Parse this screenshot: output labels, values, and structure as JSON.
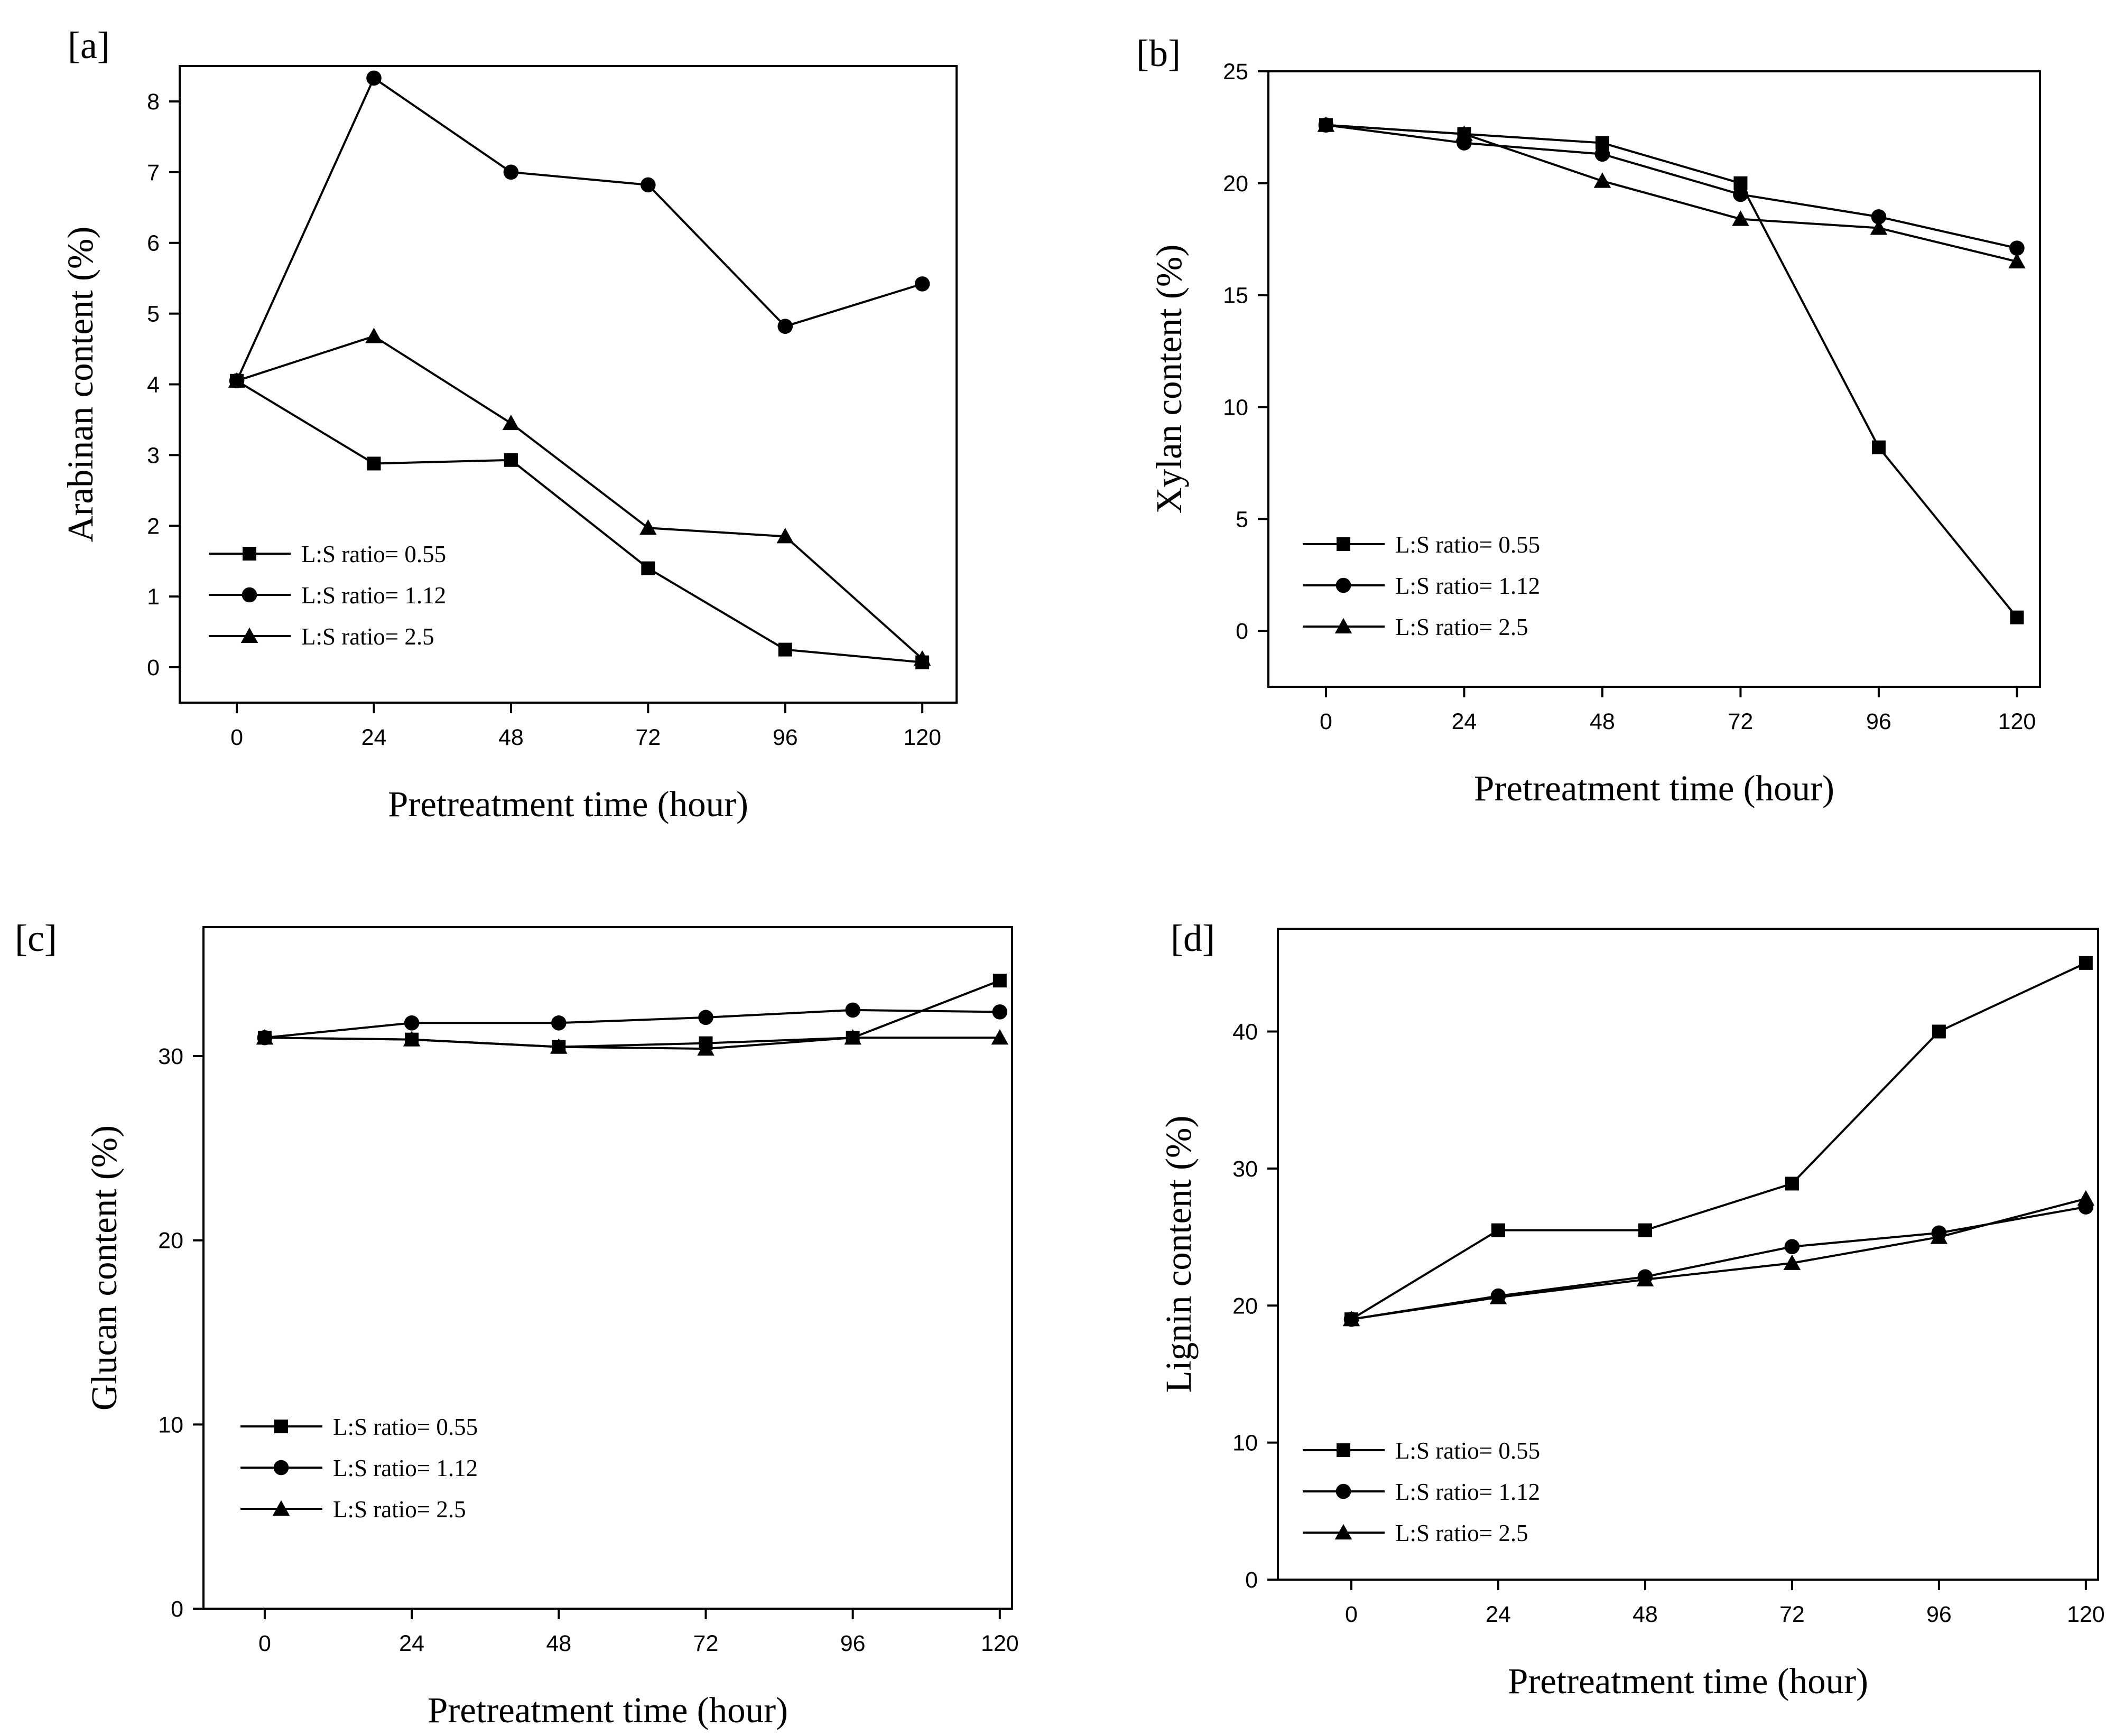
{
  "chart_data": [
    {
      "type": "line",
      "panel_label": "[a]",
      "x": [
        0,
        24,
        48,
        72,
        96,
        120
      ],
      "xticks": [
        "0",
        "24",
        "48",
        "72",
        "96",
        "120"
      ],
      "xlabel": "Pretreatment time (hour)",
      "ylabel": "Arabinan content (%)",
      "yticks": [
        "0",
        "1",
        "2",
        "3",
        "4",
        "5",
        "6",
        "7",
        "8"
      ],
      "xlim": [
        -10,
        126
      ],
      "ylim": [
        -0.5,
        8.5
      ],
      "legend_position": "bottom-left",
      "series": [
        {
          "name": "L:S ratio= 0.55",
          "marker": "square",
          "values": [
            4.05,
            2.88,
            2.93,
            1.4,
            0.25,
            0.07
          ]
        },
        {
          "name": "L:S ratio= 1.12",
          "marker": "circle",
          "values": [
            4.05,
            8.33,
            7.0,
            6.82,
            4.82,
            5.42
          ]
        },
        {
          "name": "L:S ratio= 2.5",
          "marker": "triangle",
          "values": [
            4.05,
            4.68,
            3.45,
            1.97,
            1.85,
            0.12
          ]
        }
      ]
    },
    {
      "type": "line",
      "panel_label": "[b]",
      "x": [
        0,
        24,
        48,
        72,
        96,
        120
      ],
      "xticks": [
        "0",
        "24",
        "48",
        "72",
        "96",
        "120"
      ],
      "xlabel": "Pretreatment time (hour)",
      "ylabel": "Xylan content (%)",
      "yticks": [
        "0",
        "5",
        "10",
        "15",
        "20",
        "25"
      ],
      "xlim": [
        -10,
        124
      ],
      "ylim": [
        -2.5,
        25
      ],
      "legend_position": "bottom-left",
      "series": [
        {
          "name": "L:S ratio= 0.55",
          "marker": "square",
          "values": [
            22.6,
            22.2,
            21.8,
            20.0,
            8.2,
            0.6
          ]
        },
        {
          "name": "L:S ratio= 1.12",
          "marker": "circle",
          "values": [
            22.6,
            21.8,
            21.3,
            19.5,
            18.5,
            17.1
          ]
        },
        {
          "name": "L:S ratio= 2.5",
          "marker": "triangle",
          "values": [
            22.6,
            22.2,
            20.1,
            18.4,
            18.0,
            16.5
          ]
        }
      ]
    },
    {
      "type": "line",
      "panel_label": "[c]",
      "x": [
        0,
        24,
        48,
        72,
        96,
        120
      ],
      "xticks": [
        "0",
        "24",
        "48",
        "72",
        "96",
        "120"
      ],
      "xlabel": "Pretreatment time (hour)",
      "ylabel": "Glucan content (%)",
      "yticks": [
        "0",
        "10",
        "20",
        "30"
      ],
      "xlim": [
        -10,
        122
      ],
      "ylim": [
        0,
        37
      ],
      "legend_position": "bottom-left",
      "series": [
        {
          "name": "L:S ratio= 0.55",
          "marker": "square",
          "values": [
            31.0,
            30.9,
            30.5,
            30.7,
            31.0,
            34.1
          ]
        },
        {
          "name": "L:S ratio= 1.12",
          "marker": "circle",
          "values": [
            31.0,
            31.8,
            31.8,
            32.1,
            32.5,
            32.4
          ]
        },
        {
          "name": "L:S ratio= 2.5",
          "marker": "triangle",
          "values": [
            31.0,
            30.9,
            30.5,
            30.4,
            31.0,
            31.0
          ]
        }
      ]
    },
    {
      "type": "line",
      "panel_label": "[d]",
      "x": [
        0,
        24,
        48,
        72,
        96,
        120
      ],
      "xticks": [
        "0",
        "24",
        "48",
        "72",
        "96",
        "120"
      ],
      "xlabel": "Pretreatment time (hour)",
      "ylabel": "Lignin content (%)",
      "yticks": [
        "0",
        "10",
        "20",
        "30",
        "40"
      ],
      "xlim": [
        -12,
        122
      ],
      "ylim": [
        0,
        47.5
      ],
      "legend_position": "bottom-left",
      "series": [
        {
          "name": "L:S ratio= 0.55",
          "marker": "square",
          "values": [
            19.0,
            25.5,
            25.5,
            28.9,
            40.0,
            45.0
          ]
        },
        {
          "name": "L:S ratio= 1.12",
          "marker": "circle",
          "values": [
            19.0,
            20.7,
            22.1,
            24.3,
            25.3,
            27.2
          ]
        },
        {
          "name": "L:S ratio= 2.5",
          "marker": "triangle",
          "values": [
            19.0,
            20.6,
            21.9,
            23.1,
            25.0,
            27.8
          ]
        }
      ]
    }
  ]
}
